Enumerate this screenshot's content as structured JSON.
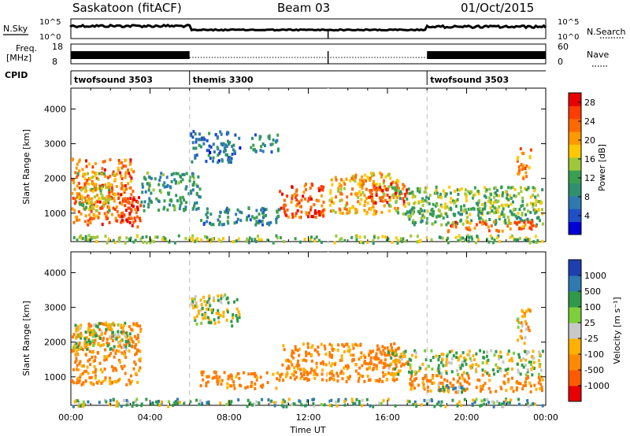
{
  "header": {
    "site": "Saskatoon  (fitACF)",
    "beam": "Beam 03",
    "date": "01/Oct/2015"
  },
  "top_panels": {
    "nsky_label": "N.Sky",
    "nsky_ticks": [
      "10^5",
      "10^0"
    ],
    "nsearch_label": "N.Search",
    "freq_label_1": "Freq.",
    "freq_label_2": "[MHz]",
    "freq_ticks": [
      "18",
      "8"
    ],
    "nave_label": "Nave",
    "nave_ticks": [
      "60",
      "0"
    ],
    "cpid_label": "CPID",
    "cpid_segments": [
      {
        "name": "twofsound  3503",
        "start_hour": 0,
        "end_hour": 6
      },
      {
        "name": "themis  3300",
        "start_hour": 6,
        "end_hour": 18
      },
      {
        "name": "twofsound  3503",
        "start_hour": 18,
        "end_hour": 24
      }
    ]
  },
  "axes": {
    "ylabel": "Slant Range [km]",
    "xlabel": "Time UT",
    "x_ticks": [
      "00:00",
      "04:00",
      "08:00",
      "12:00",
      "16:00",
      "20:00",
      "00:00"
    ],
    "y_ticks": [
      "1000",
      "2000",
      "3000",
      "4000"
    ]
  },
  "power_colorbar": {
    "label": "Power [dB]",
    "ticks": [
      "4",
      "8",
      "12",
      "16",
      "20",
      "24",
      "28"
    ]
  },
  "velocity_colorbar": {
    "label": "Velocity  [m s⁻¹]",
    "ticks": [
      "1000",
      "500",
      "100",
      "25",
      "-25",
      "-100",
      "-500",
      "-1000"
    ]
  },
  "chart_data": [
    {
      "type": "heatmap",
      "name": "power",
      "xlim_hours": [
        0,
        24
      ],
      "ylim_km": [
        180,
        4600
      ],
      "value_range_db": [
        0,
        30
      ],
      "scatter_regions": [
        {
          "t0": 0.0,
          "t1": 3.2,
          "r0": 700,
          "r1": 2600,
          "v": 24
        },
        {
          "t0": 2.5,
          "t1": 3.5,
          "r0": 600,
          "r1": 1500,
          "v": 28
        },
        {
          "t0": 0.3,
          "t1": 2.2,
          "r0": 1100,
          "r1": 2200,
          "v": 16
        },
        {
          "t0": 3.5,
          "t1": 6.5,
          "r0": 1100,
          "r1": 2200,
          "v": 10
        },
        {
          "t0": 6.0,
          "t1": 8.5,
          "r0": 2500,
          "r1": 3400,
          "v": 6
        },
        {
          "t0": 9.0,
          "t1": 10.5,
          "r0": 2800,
          "r1": 3300,
          "v": 8
        },
        {
          "t0": 6.5,
          "t1": 10.5,
          "r0": 700,
          "r1": 1200,
          "v": 8
        },
        {
          "t0": 10.5,
          "t1": 12.8,
          "r0": 900,
          "r1": 1900,
          "v": 26
        },
        {
          "t0": 13.0,
          "t1": 16.5,
          "r0": 1000,
          "r1": 2200,
          "v": 20
        },
        {
          "t0": 15.0,
          "t1": 17.0,
          "r0": 1300,
          "r1": 1900,
          "v": 26
        },
        {
          "t0": 16.0,
          "t1": 23.8,
          "r0": 1000,
          "r1": 1800,
          "v": 14
        },
        {
          "t0": 17.0,
          "t1": 23.8,
          "r0": 700,
          "r1": 1200,
          "v": 12
        },
        {
          "t0": 19.0,
          "t1": 23.5,
          "r0": 500,
          "r1": 800,
          "v": 24
        },
        {
          "t0": 22.5,
          "t1": 23.2,
          "r0": 2000,
          "r1": 3000,
          "v": 22
        },
        {
          "t0": 0.0,
          "t1": 23.8,
          "r0": 180,
          "r1": 400,
          "v": 14
        }
      ]
    },
    {
      "type": "heatmap",
      "name": "velocity",
      "xlim_hours": [
        0,
        24
      ],
      "ylim_km": [
        180,
        4600
      ],
      "value_range_ms": [
        -1000,
        1000
      ],
      "scatter_regions": [
        {
          "t0": 0.0,
          "t1": 3.5,
          "r0": 800,
          "r1": 2600,
          "v": -150
        },
        {
          "t0": 0.0,
          "t1": 3.0,
          "r0": 1800,
          "r1": 2600,
          "v": 0
        },
        {
          "t0": 6.0,
          "t1": 8.5,
          "r0": 2500,
          "r1": 3400,
          "v": 0
        },
        {
          "t0": 6.5,
          "t1": 10.5,
          "r0": 700,
          "r1": 1200,
          "v": -150
        },
        {
          "t0": 10.5,
          "t1": 16.5,
          "r0": 900,
          "r1": 2000,
          "v": -150
        },
        {
          "t0": 15.0,
          "t1": 17.0,
          "r0": 1300,
          "r1": 1900,
          "v": -300
        },
        {
          "t0": 16.0,
          "t1": 23.8,
          "r0": 1100,
          "r1": 1800,
          "v": 0
        },
        {
          "t0": 17.0,
          "t1": 23.8,
          "r0": 600,
          "r1": 1100,
          "v": -150
        },
        {
          "t0": 18.5,
          "t1": 20.0,
          "r0": 600,
          "r1": 900,
          "v": 70
        },
        {
          "t0": 22.5,
          "t1": 23.2,
          "r0": 2000,
          "r1": 3000,
          "v": -80
        },
        {
          "t0": 0.0,
          "t1": 23.8,
          "r0": 180,
          "r1": 400,
          "v": 40
        }
      ]
    }
  ]
}
